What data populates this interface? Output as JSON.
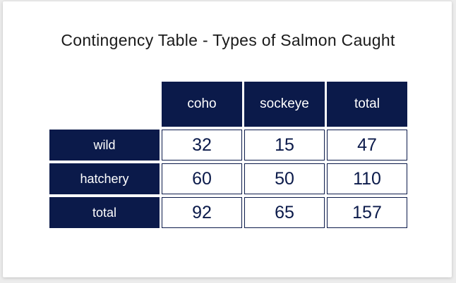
{
  "title": "Contingency Table - Types of Salmon Caught",
  "colors": {
    "header_bg": "#0b1a4a",
    "header_text": "#ffffff",
    "cell_border": "#0b1a4a",
    "cell_text": "#0b1a4a"
  },
  "table": {
    "columns": [
      "coho",
      "sockeye",
      "total"
    ],
    "rows": [
      {
        "label": "wild",
        "values": [
          "32",
          "15",
          "47"
        ]
      },
      {
        "label": "hatchery",
        "values": [
          "60",
          "50",
          "110"
        ]
      },
      {
        "label": "total",
        "values": [
          "92",
          "65",
          "157"
        ]
      }
    ]
  }
}
